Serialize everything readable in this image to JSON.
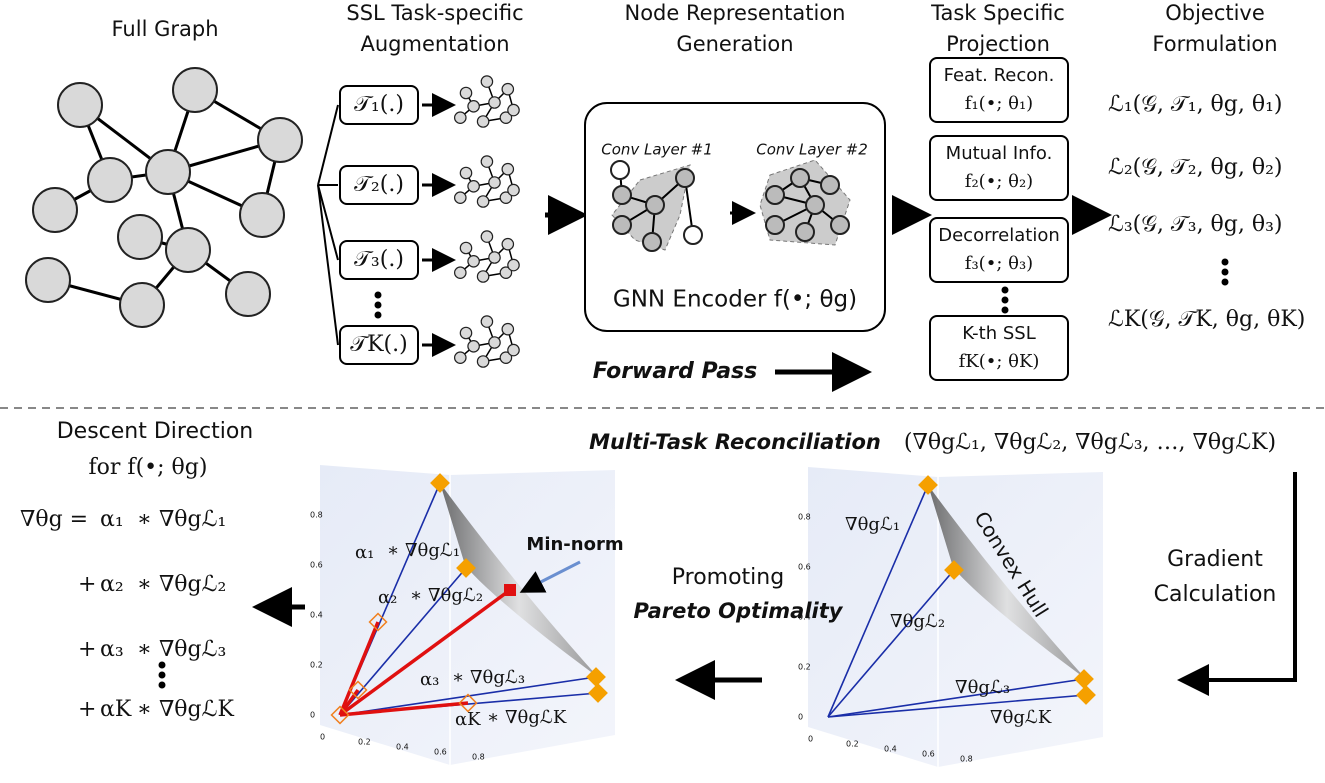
{
  "sections": {
    "full_graph": "Full Graph",
    "augmentation": [
      "SSL Task-specific",
      "Augmentation"
    ],
    "generation": [
      "Node Representation",
      "Generation"
    ],
    "projection": [
      "Task Specific",
      "Projection"
    ],
    "objective": [
      "Objective",
      "Formulation"
    ]
  },
  "augmentations": [
    "𝒯₁(.)",
    "𝒯₂(.)",
    "𝒯₃(.)",
    "𝒯K(.)"
  ],
  "encoder": {
    "layer1": "Conv Layer #1",
    "layer2": "Conv Layer #2",
    "label": "GNN Encoder f(•; θg)"
  },
  "projections": [
    {
      "name": "Feat. Recon.",
      "func": "f₁(•; θ₁)"
    },
    {
      "name": "Mutual Info.",
      "func": "f₂(•; θ₂)"
    },
    {
      "name": "Decorrelation",
      "func": "f₃(•; θ₃)"
    },
    {
      "name": "K-th SSL",
      "func": "fK(•; θK)"
    }
  ],
  "objectives": [
    "ℒ₁(𝒢, 𝒯₁, θg, θ₁)",
    "ℒ₂(𝒢, 𝒯₂, θg, θ₂)",
    "ℒ₃(𝒢, 𝒯₃, θg, θ₃)",
    "ℒK(𝒢, 𝒯K, θg, θK)"
  ],
  "forward_pass": "Forward Pass",
  "descent": {
    "title": [
      "Descent Direction",
      "for f(•; θg)"
    ],
    "lhs": "∇θg =",
    "terms": [
      {
        "coef": "α₁",
        "grad": "∗ ∇θgℒ₁"
      },
      {
        "sign": "+",
        "coef": "α₂",
        "grad": "∗ ∇θgℒ₂"
      },
      {
        "sign": "+",
        "coef": "α₃",
        "grad": "∗ ∇θgℒ₃"
      },
      {
        "sign": "+",
        "coef": "αK",
        "grad": "∗ ∇θgℒK"
      }
    ]
  },
  "reconciliation": "Multi-Task Reconciliation",
  "gradients": "(∇θgℒ₁, ∇θgℒ₂, ∇θgℒ₃, …, ∇θgℒK)",
  "gradient_calc": [
    "Gradient",
    "Calculation"
  ],
  "promoting": [
    "Promoting",
    "Pareto Optimality"
  ],
  "min_norm": "Min-norm",
  "convex_hull": "Convex Hull",
  "plot_left": [
    {
      "coef": "α₁",
      "grad": "∗ ∇θgℒ₁"
    },
    {
      "coef": "α₂",
      "grad": "∗ ∇θgℒ₂"
    },
    {
      "coef": "α₃",
      "grad": "∗ ∇θgℒ₃"
    },
    {
      "coef": "αK",
      "grad": "∗ ∇θgℒK"
    }
  ],
  "plot_right": [
    "∇θgℒ₁",
    "∇θgℒ₂",
    "∇θgℒ₃",
    "∇θgℒK"
  ],
  "plot_ticks": [
    "0",
    "0.2",
    "0.4",
    "0.6",
    "0.8"
  ]
}
